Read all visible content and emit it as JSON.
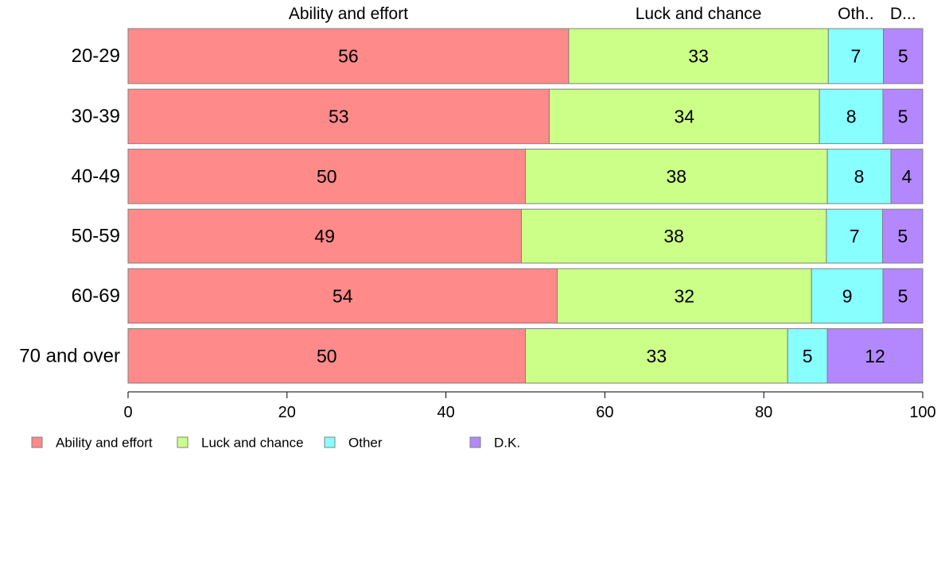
{
  "chart_data": {
    "type": "bar",
    "orientation": "horizontal",
    "stacked": true,
    "categories": [
      "20-29",
      "30-39",
      "40-49",
      "50-59",
      "60-69",
      "70 and over"
    ],
    "series": [
      {
        "name": "Ability and effort",
        "header": "Ability and effort",
        "color": "#ff8a8a",
        "values": [
          56,
          53,
          50,
          49,
          54,
          50
        ]
      },
      {
        "name": "Luck and chance",
        "header": "Luck and chance",
        "color": "#ccff88",
        "values": [
          33,
          34,
          38,
          38,
          32,
          33
        ]
      },
      {
        "name": "Other",
        "header": "Oth..",
        "color": "#88ffff",
        "values": [
          7,
          8,
          8,
          7,
          9,
          5
        ]
      },
      {
        "name": "D.K.",
        "header": "D...",
        "color": "#b388ff",
        "values": [
          5,
          5,
          4,
          5,
          5,
          12
        ]
      }
    ],
    "xlim": [
      0,
      100
    ],
    "xticks": [
      0,
      20,
      40,
      60,
      80,
      100
    ],
    "xlabel": "",
    "ylabel": "",
    "title": "",
    "grid": false,
    "legend_position": "bottom-left"
  }
}
